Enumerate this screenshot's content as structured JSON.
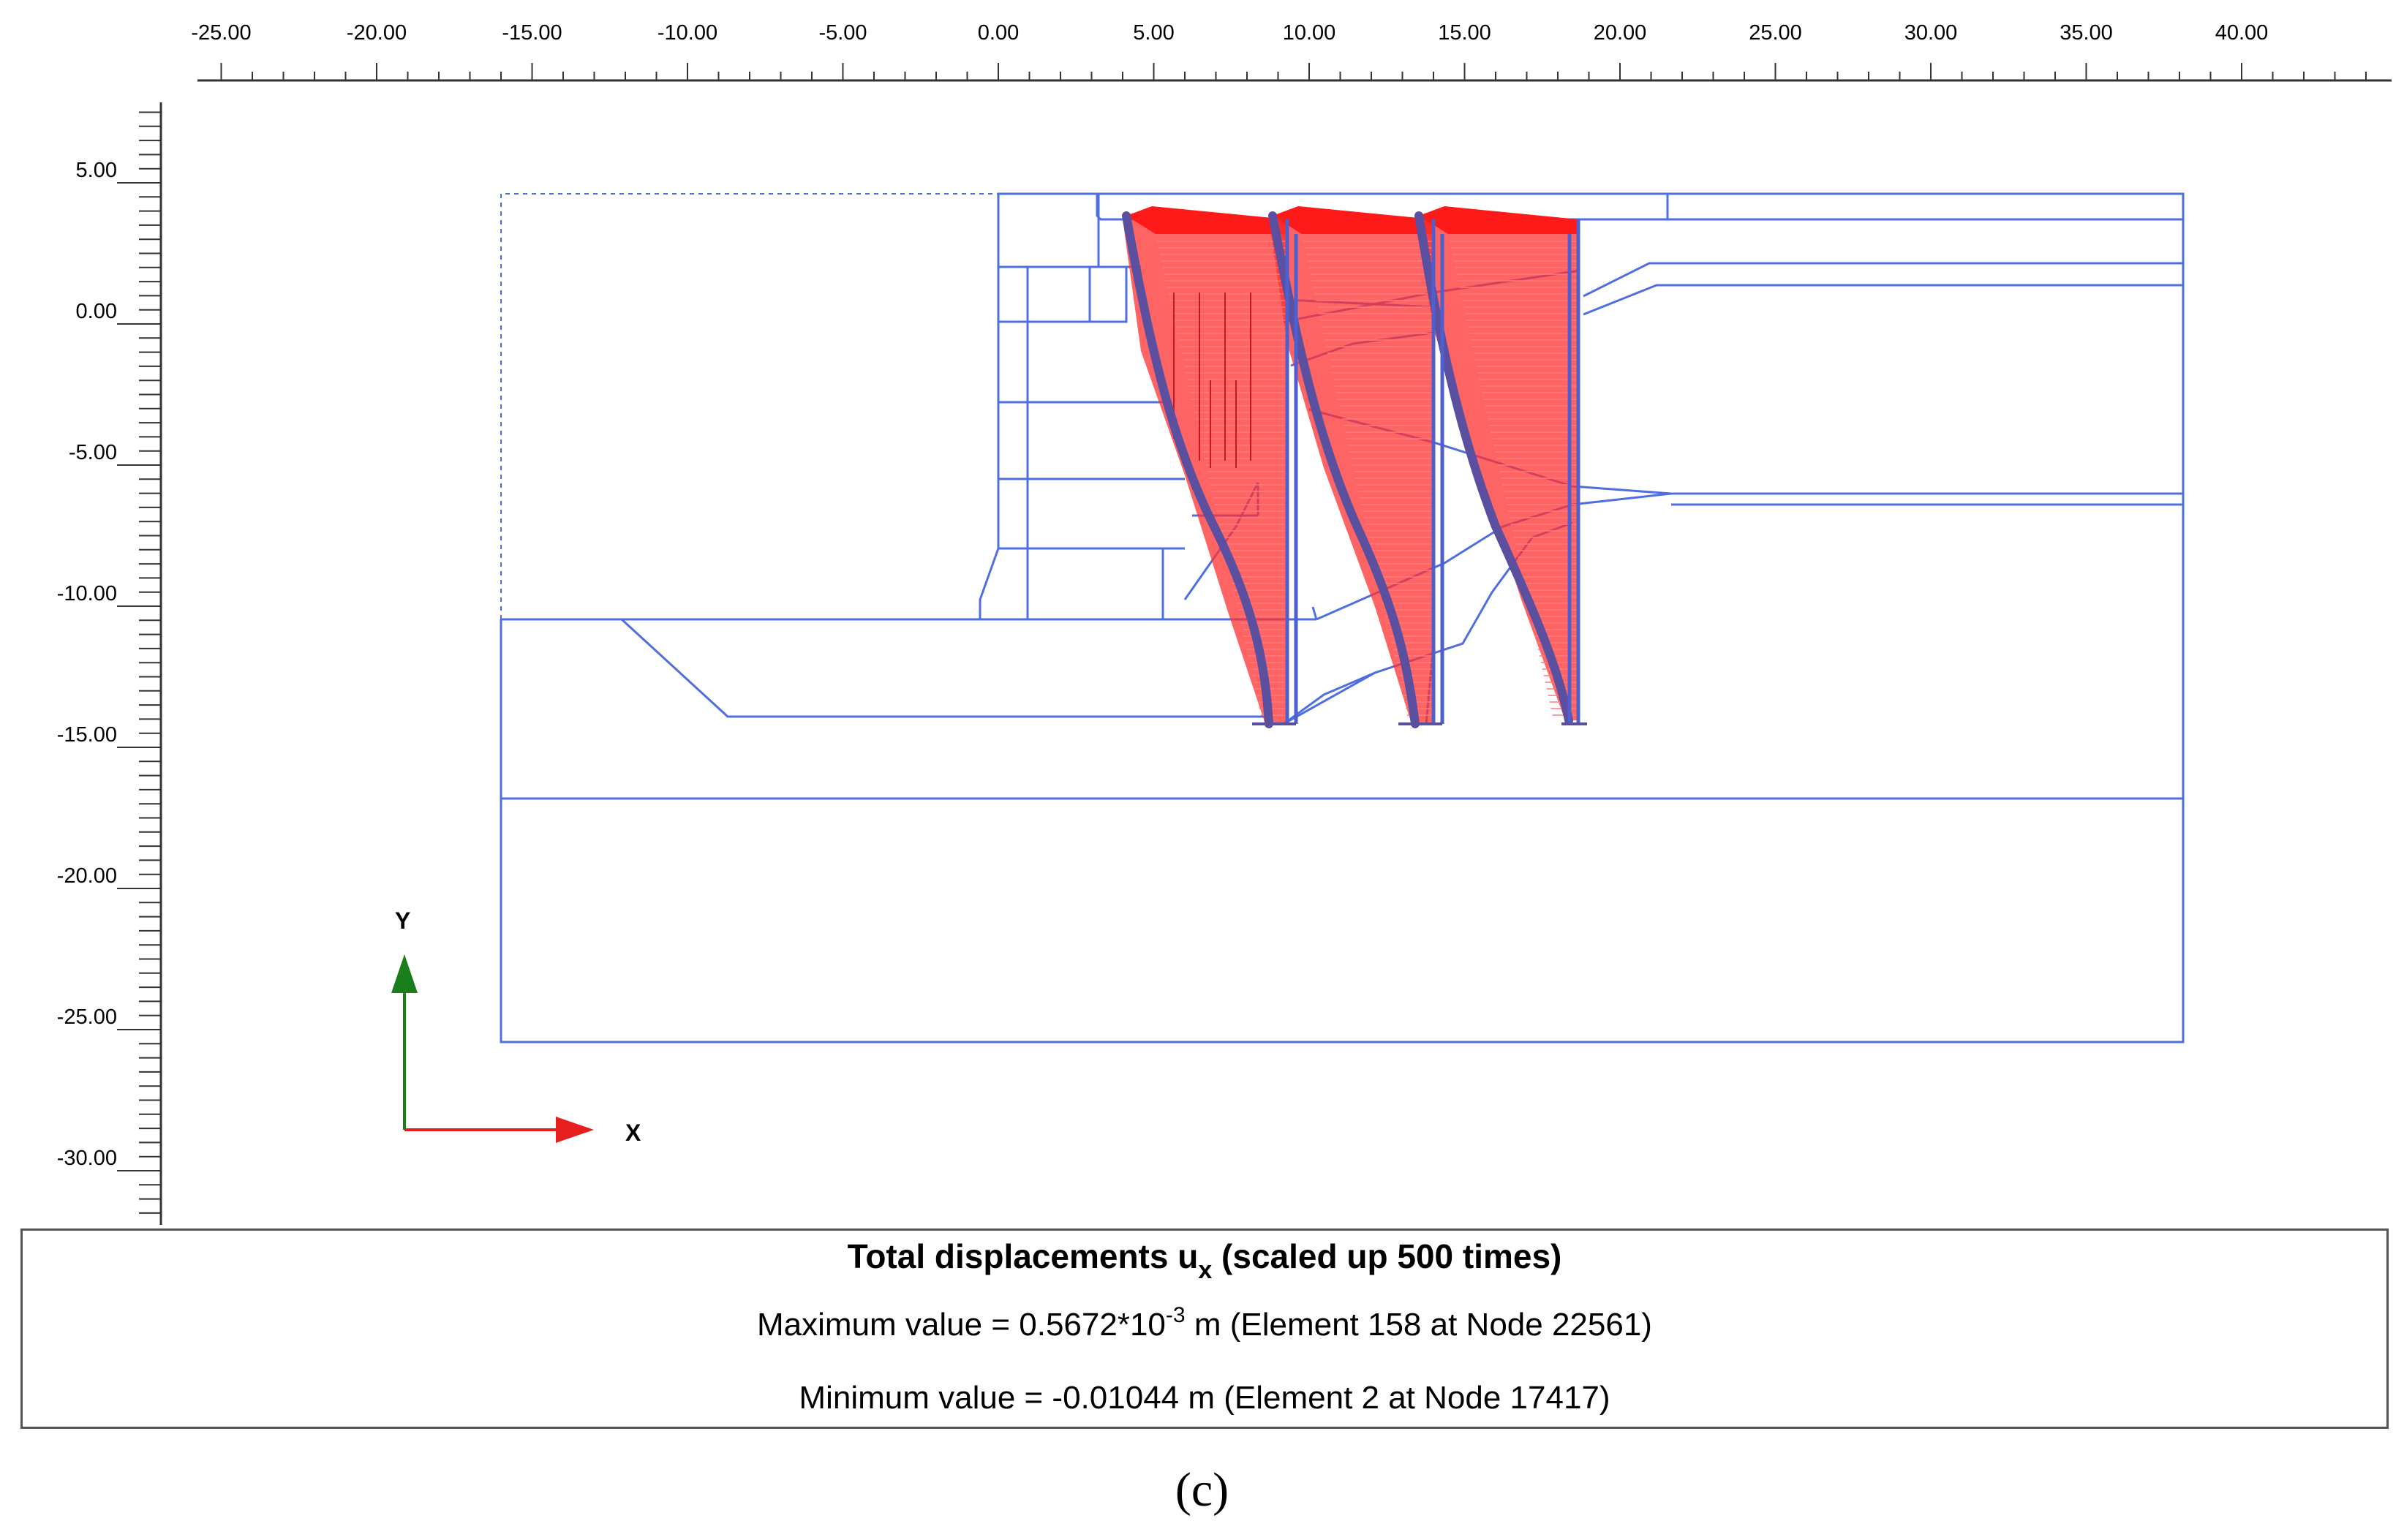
{
  "axes": {
    "x_ticks": [
      "-25.00",
      "-20.00",
      "-15.00",
      "-10.00",
      "-5.00",
      "0.00",
      "5.00",
      "10.00",
      "15.00",
      "20.00",
      "25.00",
      "30.00",
      "35.00",
      "40.00"
    ],
    "x_tick_values": [
      -25,
      -20,
      -15,
      -10,
      -5,
      0,
      5,
      10,
      15,
      20,
      25,
      30,
      35,
      40
    ],
    "y_ticks": [
      "5.00",
      "0.00",
      "-5.00",
      "-10.00",
      "-15.00",
      "-20.00",
      "-25.00",
      "-30.00"
    ],
    "y_tick_values": [
      5,
      0,
      -5,
      -10,
      -15,
      -20,
      -25,
      -30
    ],
    "x_range": [
      -26.0,
      44.0
    ],
    "y_range": [
      8.0,
      -32.0
    ]
  },
  "triad": {
    "y_label": "Y",
    "x_label": "X",
    "y_color": "#1a7f1a",
    "x_color": "#e61e1e"
  },
  "colors": {
    "mesh": "#4f6fe0",
    "displacement": "#ff1a1a",
    "wall": "#5b4fa0"
  },
  "info": {
    "title_main": "Total displacements u",
    "title_sub": "x",
    "title_rest": " (scaled up 500 times)",
    "max_prefix": "Maximum value = 0.5672*10",
    "max_exp": "-3",
    "max_suffix": " m (Element 158 at Node 22561)",
    "min_text": "Minimum value = -0.01044 m (Element 2 at Node 17417)"
  },
  "caption": "(c)"
}
